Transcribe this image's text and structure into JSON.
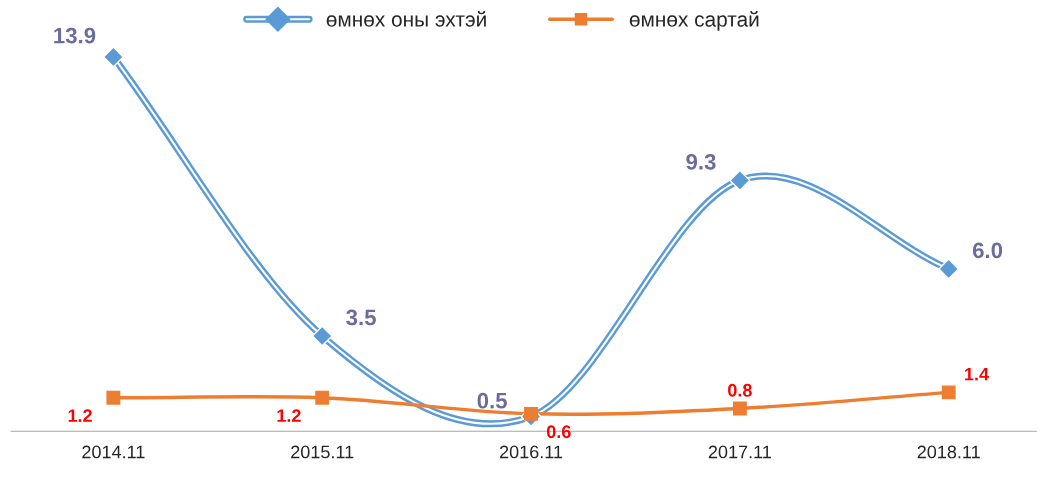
{
  "chart_data": {
    "type": "line",
    "categories": [
      "2014.11",
      "2015.11",
      "2016.11",
      "2017.11",
      "2018.11"
    ],
    "series": [
      {
        "name": "өмнөх оны эхтэй",
        "color": "#5b9bd5",
        "marker": "diamond",
        "values": [
          13.9,
          3.5,
          0.5,
          9.3,
          6.0
        ],
        "value_labels": [
          "13.9",
          "3.5",
          "0.5",
          "9.3",
          "6.0"
        ]
      },
      {
        "name": "өмнөх сартай",
        "color": "#ed7d31",
        "marker": "square",
        "values": [
          1.2,
          1.2,
          0.6,
          0.8,
          1.4
        ],
        "value_labels": [
          "1.2",
          "1.2",
          "0.6",
          "0.8",
          "1.4"
        ]
      }
    ],
    "tick_labels": "x",
    "legend": "top"
  }
}
